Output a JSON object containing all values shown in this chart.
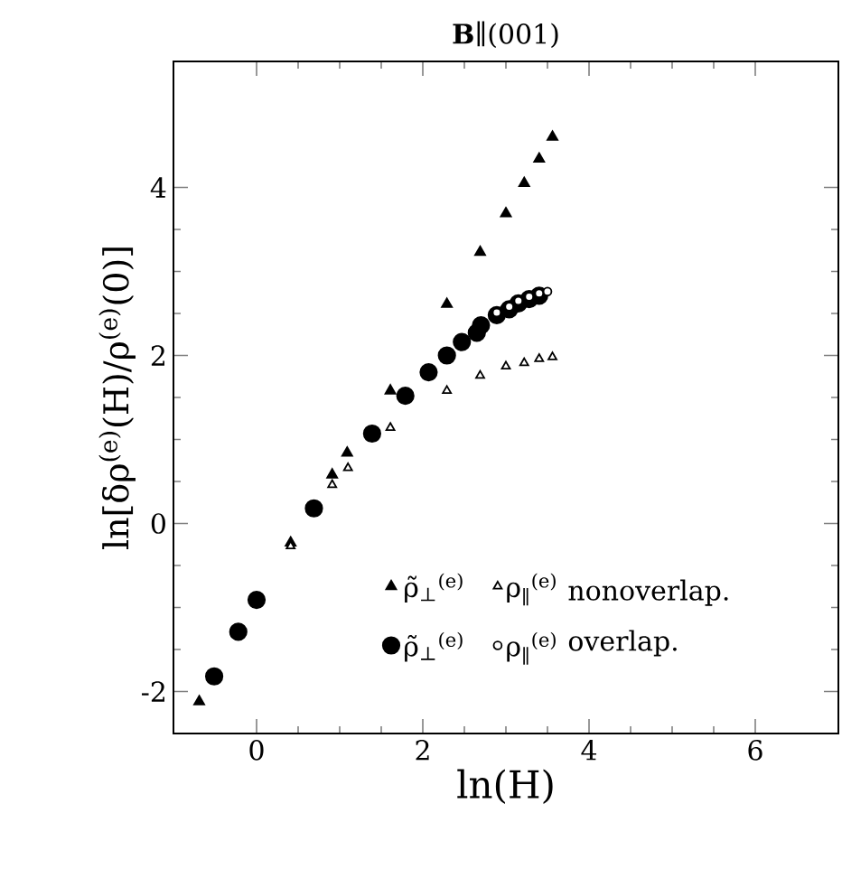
{
  "chart_data": {
    "type": "scatter",
    "title": "**B**∥(001)",
    "xlabel": "ln(H)",
    "ylabel": "ln[δρ$^{(e)}$(H)/ρ$^{(e)}$(0)]",
    "xlim": [
      -1,
      7
    ],
    "ylim": [
      -2.5,
      5.5
    ],
    "xticks": [
      0,
      2,
      4,
      6
    ],
    "yticks": [
      -2,
      0,
      2,
      4
    ],
    "legend": "bottom",
    "grid": false,
    "annotations": [
      "nonoverlap.",
      "overlap."
    ],
    "series": [
      {
        "name": "ρ̃$_{⊥}$$^{(e)}$",
        "color": "#000000",
        "marker": "triangle",
        "x": [
          -0.69,
          0.41,
          0.91,
          1.09,
          1.61,
          2.29,
          2.69,
          3.0,
          3.22,
          3.4,
          3.56
        ],
        "values": [
          -2.12,
          -0.23,
          0.58,
          0.84,
          1.58,
          2.61,
          3.23,
          3.69,
          4.05,
          4.34,
          4.6
        ]
      },
      {
        "name": "ρ$_{∥}$$^{(e)}$",
        "color": "#000000",
        "marker": "triangle",
        "x": [
          0.41,
          0.91,
          1.1,
          1.61,
          2.29,
          2.69,
          3.0,
          3.22,
          3.4,
          3.56
        ],
        "values": [
          -0.27,
          0.46,
          0.66,
          1.14,
          1.58,
          1.76,
          1.87,
          1.91,
          1.96,
          1.98
        ]
      },
      {
        "name": "ρ̃$_{⊥}$$^{(e)}$",
        "color": "#000000",
        "marker": "circle",
        "x": [
          -0.51,
          -0.22,
          0.0,
          0.69,
          1.39,
          1.79,
          2.07,
          2.29,
          2.47,
          2.65,
          2.7,
          2.89,
          3.04,
          3.15,
          3.28,
          3.4
        ],
        "values": [
          -1.82,
          -1.29,
          -0.91,
          0.18,
          1.07,
          1.52,
          1.8,
          2.0,
          2.16,
          2.27,
          2.36,
          2.48,
          2.55,
          2.62,
          2.67,
          2.71
        ]
      },
      {
        "name": "ρ$_{∥}$$^{(e)}$",
        "color": "#000000",
        "marker": "circle",
        "x": [
          2.89,
          3.04,
          3.15,
          3.28,
          3.4,
          3.5
        ],
        "values": [
          2.51,
          2.58,
          2.65,
          2.7,
          2.74,
          2.76
        ]
      }
    ]
  }
}
